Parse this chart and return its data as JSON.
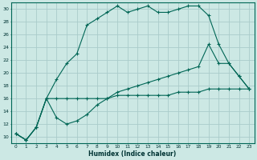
{
  "xlabel": "Humidex (Indice chaleur)",
  "background_color": "#cce8e4",
  "grid_color": "#aaccca",
  "line_color": "#006655",
  "xlim": [
    -0.5,
    23.5
  ],
  "ylim": [
    9,
    31
  ],
  "xticks": [
    0,
    1,
    2,
    3,
    4,
    5,
    6,
    7,
    8,
    9,
    10,
    11,
    12,
    13,
    14,
    15,
    16,
    17,
    18,
    19,
    20,
    21,
    22,
    23
  ],
  "yticks": [
    10,
    12,
    14,
    16,
    18,
    20,
    22,
    24,
    26,
    28,
    30
  ],
  "line1_x": [
    0,
    1,
    2,
    3,
    4,
    5,
    6,
    7,
    8,
    9,
    10,
    11,
    12,
    13,
    14,
    15,
    16,
    17,
    18,
    19,
    20,
    21,
    22,
    23
  ],
  "line1_y": [
    10.5,
    9.5,
    11.5,
    16.0,
    19.0,
    21.5,
    23.0,
    27.5,
    28.5,
    29.5,
    30.5,
    29.5,
    30.0,
    30.5,
    29.5,
    29.5,
    30.0,
    30.5,
    30.5,
    29.0,
    24.5,
    21.5,
    19.5,
    17.5
  ],
  "line2_x": [
    0,
    1,
    2,
    3,
    4,
    5,
    6,
    7,
    8,
    9,
    10,
    11,
    12,
    13,
    14,
    15,
    16,
    17,
    18,
    19,
    20,
    21,
    22,
    23
  ],
  "line2_y": [
    10.5,
    9.5,
    11.5,
    16.0,
    16.0,
    16.0,
    16.0,
    16.0,
    16.0,
    16.0,
    16.5,
    16.5,
    16.5,
    16.5,
    16.5,
    16.5,
    17.0,
    17.0,
    17.0,
    17.5,
    17.5,
    17.5,
    17.5,
    17.5
  ],
  "line3_x": [
    0,
    1,
    2,
    3,
    4,
    5,
    6,
    7,
    8,
    9,
    10,
    11,
    12,
    13,
    14,
    15,
    16,
    17,
    18,
    19,
    20,
    21,
    22,
    23
  ],
  "line3_y": [
    10.5,
    9.5,
    11.5,
    16.0,
    13.0,
    12.0,
    12.5,
    13.5,
    15.0,
    16.0,
    17.0,
    17.5,
    18.0,
    18.5,
    19.0,
    19.5,
    20.0,
    20.5,
    21.0,
    24.5,
    21.5,
    21.5,
    19.5,
    17.5
  ]
}
